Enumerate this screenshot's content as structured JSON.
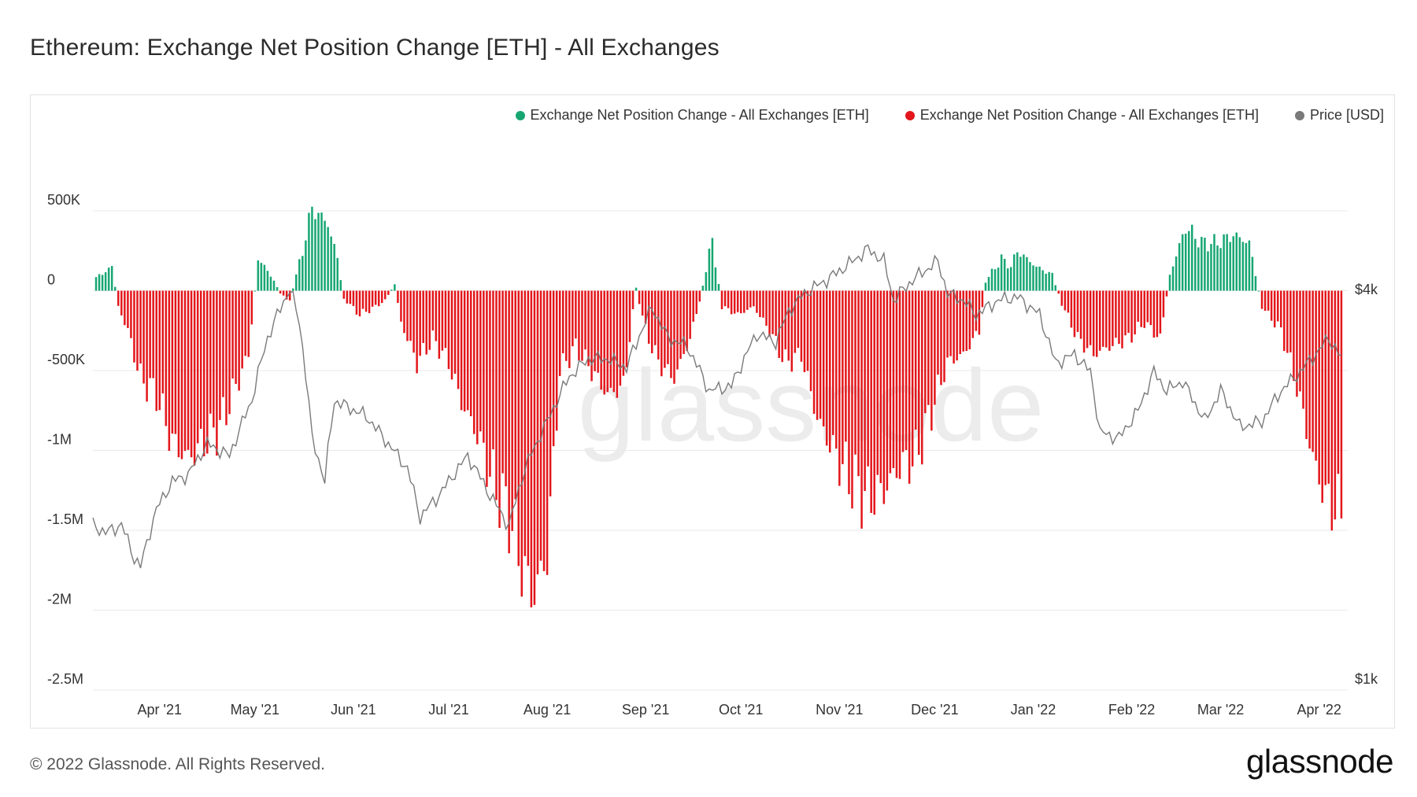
{
  "page": {
    "title": "Ethereum: Exchange Net Position Change [ETH] - All Exchanges",
    "copyright": "© 2022 Glassnode. All Rights Reserved.",
    "brand": "glassnode",
    "watermark": "glassnode"
  },
  "colors": {
    "positive": "#17a673",
    "negative": "#e3161b",
    "price": "#7a7a7a",
    "grid": "#e9e9e9"
  },
  "chart_data": {
    "type": "bar",
    "title": "Ethereum: Exchange Net Position Change [ETH] - All Exchanges",
    "legend": [
      {
        "label": "Exchange Net Position Change - All Exchanges [ETH]",
        "color": "#17a673"
      },
      {
        "label": "Exchange Net Position Change - All Exchanges [ETH]",
        "color": "#e3161b"
      },
      {
        "label": "Price [USD]",
        "color": "#7a7a7a"
      }
    ],
    "legend_position": "top-right",
    "y_left": {
      "ticks": [
        500000,
        0,
        -500000,
        -1000000,
        -1500000,
        -2000000,
        -2500000
      ],
      "tick_labels": [
        "500K",
        "0",
        "-500K",
        "-1M",
        "-1.5M",
        "-2M",
        "-2.5M"
      ],
      "range": [
        -2500000,
        500000
      ]
    },
    "y_right": {
      "scale": "log",
      "ticks": [
        4000,
        1000
      ],
      "tick_labels": [
        "$4k",
        "$1k"
      ],
      "range": [
        1000,
        5500
      ]
    },
    "x_axis": {
      "range": [
        "2021-03-11",
        "2022-04-10"
      ],
      "ticks": [
        {
          "date": "2021-04-01",
          "label": "Apr '21"
        },
        {
          "date": "2021-05-01",
          "label": "May '21"
        },
        {
          "date": "2021-06-01",
          "label": "Jun '21"
        },
        {
          "date": "2021-07-01",
          "label": "Jul '21"
        },
        {
          "date": "2021-08-01",
          "label": "Aug '21"
        },
        {
          "date": "2021-09-01",
          "label": "Sep '21"
        },
        {
          "date": "2021-10-01",
          "label": "Oct '21"
        },
        {
          "date": "2021-11-01",
          "label": "Nov '21"
        },
        {
          "date": "2021-12-01",
          "label": "Dec '21"
        },
        {
          "date": "2022-01-01",
          "label": "Jan '22"
        },
        {
          "date": "2022-02-01",
          "label": "Feb '22"
        },
        {
          "date": "2022-03-01",
          "label": "Mar '22"
        },
        {
          "date": "2022-04-01",
          "label": "Apr '22"
        }
      ]
    },
    "net_position_keypoints": [
      {
        "date": "2021-03-12",
        "value": 80000
      },
      {
        "date": "2021-03-17",
        "value": 150000
      },
      {
        "date": "2021-03-19",
        "value": -100000
      },
      {
        "date": "2021-03-22",
        "value": -250000
      },
      {
        "date": "2021-03-26",
        "value": -550000
      },
      {
        "date": "2021-03-31",
        "value": -650000
      },
      {
        "date": "2021-04-05",
        "value": -950000
      },
      {
        "date": "2021-04-10",
        "value": -1050000
      },
      {
        "date": "2021-04-15",
        "value": -950000
      },
      {
        "date": "2021-04-20",
        "value": -850000
      },
      {
        "date": "2021-04-25",
        "value": -600000
      },
      {
        "date": "2021-04-29",
        "value": -400000
      },
      {
        "date": "2021-05-02",
        "value": 200000
      },
      {
        "date": "2021-05-06",
        "value": 100000
      },
      {
        "date": "2021-05-09",
        "value": -20000
      },
      {
        "date": "2021-05-12",
        "value": -60000
      },
      {
        "date": "2021-05-16",
        "value": 250000
      },
      {
        "date": "2021-05-19",
        "value": 520000
      },
      {
        "date": "2021-05-24",
        "value": 420000
      },
      {
        "date": "2021-05-27",
        "value": 200000
      },
      {
        "date": "2021-05-29",
        "value": -50000
      },
      {
        "date": "2021-06-03",
        "value": -150000
      },
      {
        "date": "2021-06-08",
        "value": -100000
      },
      {
        "date": "2021-06-11",
        "value": -60000
      },
      {
        "date": "2021-06-14",
        "value": 40000
      },
      {
        "date": "2021-06-16",
        "value": -200000
      },
      {
        "date": "2021-06-21",
        "value": -450000
      },
      {
        "date": "2021-06-26",
        "value": -300000
      },
      {
        "date": "2021-07-01",
        "value": -450000
      },
      {
        "date": "2021-07-05",
        "value": -700000
      },
      {
        "date": "2021-07-10",
        "value": -900000
      },
      {
        "date": "2021-07-15",
        "value": -1200000
      },
      {
        "date": "2021-07-20",
        "value": -1400000
      },
      {
        "date": "2021-07-25",
        "value": -1800000
      },
      {
        "date": "2021-07-28",
        "value": -1900000
      },
      {
        "date": "2021-08-01",
        "value": -1650000
      },
      {
        "date": "2021-08-05",
        "value": -500000
      },
      {
        "date": "2021-08-10",
        "value": -350000
      },
      {
        "date": "2021-08-15",
        "value": -500000
      },
      {
        "date": "2021-08-20",
        "value": -650000
      },
      {
        "date": "2021-08-25",
        "value": -600000
      },
      {
        "date": "2021-08-29",
        "value": 20000
      },
      {
        "date": "2021-09-01",
        "value": -250000
      },
      {
        "date": "2021-09-05",
        "value": -450000
      },
      {
        "date": "2021-09-10",
        "value": -550000
      },
      {
        "date": "2021-09-15",
        "value": -300000
      },
      {
        "date": "2021-09-18",
        "value": -60000
      },
      {
        "date": "2021-09-22",
        "value": 320000
      },
      {
        "date": "2021-09-25",
        "value": -100000
      },
      {
        "date": "2021-09-30",
        "value": -150000
      },
      {
        "date": "2021-10-05",
        "value": -100000
      },
      {
        "date": "2021-10-10",
        "value": -250000
      },
      {
        "date": "2021-10-15",
        "value": -450000
      },
      {
        "date": "2021-10-20",
        "value": -400000
      },
      {
        "date": "2021-10-25",
        "value": -800000
      },
      {
        "date": "2021-10-30",
        "value": -1000000
      },
      {
        "date": "2021-11-05",
        "value": -1200000
      },
      {
        "date": "2021-11-10",
        "value": -1300000
      },
      {
        "date": "2021-11-15",
        "value": -1250000
      },
      {
        "date": "2021-11-20",
        "value": -1100000
      },
      {
        "date": "2021-11-25",
        "value": -1050000
      },
      {
        "date": "2021-11-30",
        "value": -750000
      },
      {
        "date": "2021-12-05",
        "value": -450000
      },
      {
        "date": "2021-12-10",
        "value": -400000
      },
      {
        "date": "2021-12-15",
        "value": -250000
      },
      {
        "date": "2021-12-17",
        "value": 60000
      },
      {
        "date": "2021-12-22",
        "value": 200000
      },
      {
        "date": "2021-12-25",
        "value": 150000
      },
      {
        "date": "2021-12-27",
        "value": 250000
      },
      {
        "date": "2022-01-02",
        "value": 150000
      },
      {
        "date": "2022-01-07",
        "value": 100000
      },
      {
        "date": "2022-01-10",
        "value": -80000
      },
      {
        "date": "2022-01-15",
        "value": -300000
      },
      {
        "date": "2022-01-20",
        "value": -400000
      },
      {
        "date": "2022-01-25",
        "value": -350000
      },
      {
        "date": "2022-01-31",
        "value": -300000
      },
      {
        "date": "2022-02-05",
        "value": -200000
      },
      {
        "date": "2022-02-10",
        "value": -300000
      },
      {
        "date": "2022-02-13",
        "value": 100000
      },
      {
        "date": "2022-02-18",
        "value": 400000
      },
      {
        "date": "2022-02-23",
        "value": 300000
      },
      {
        "date": "2022-02-28",
        "value": 300000
      },
      {
        "date": "2022-03-05",
        "value": 350000
      },
      {
        "date": "2022-03-10",
        "value": 300000
      },
      {
        "date": "2022-03-14",
        "value": -100000
      },
      {
        "date": "2022-03-20",
        "value": -250000
      },
      {
        "date": "2022-03-25",
        "value": -600000
      },
      {
        "date": "2022-03-30",
        "value": -1050000
      },
      {
        "date": "2022-04-03",
        "value": -1300000
      },
      {
        "date": "2022-04-08",
        "value": -1400000
      }
    ],
    "price_keypoints": [
      {
        "date": "2021-03-11",
        "value": 1800
      },
      {
        "date": "2021-03-15",
        "value": 1750
      },
      {
        "date": "2021-03-20",
        "value": 1800
      },
      {
        "date": "2021-03-24",
        "value": 1600
      },
      {
        "date": "2021-03-26",
        "value": 1550
      },
      {
        "date": "2021-03-31",
        "value": 1900
      },
      {
        "date": "2021-04-05",
        "value": 2100
      },
      {
        "date": "2021-04-10",
        "value": 2150
      },
      {
        "date": "2021-04-16",
        "value": 2400
      },
      {
        "date": "2021-04-23",
        "value": 2300
      },
      {
        "date": "2021-04-30",
        "value": 2800
      },
      {
        "date": "2021-05-05",
        "value": 3500
      },
      {
        "date": "2021-05-12",
        "value": 4170
      },
      {
        "date": "2021-05-15",
        "value": 3700
      },
      {
        "date": "2021-05-19",
        "value": 2450
      },
      {
        "date": "2021-05-23",
        "value": 2100
      },
      {
        "date": "2021-05-26",
        "value": 2800
      },
      {
        "date": "2021-06-05",
        "value": 2650
      },
      {
        "date": "2021-06-12",
        "value": 2400
      },
      {
        "date": "2021-06-18",
        "value": 2200
      },
      {
        "date": "2021-06-22",
        "value": 1850
      },
      {
        "date": "2021-06-28",
        "value": 2000
      },
      {
        "date": "2021-07-07",
        "value": 2300
      },
      {
        "date": "2021-07-14",
        "value": 2000
      },
      {
        "date": "2021-07-20",
        "value": 1790
      },
      {
        "date": "2021-07-25",
        "value": 2200
      },
      {
        "date": "2021-08-01",
        "value": 2600
      },
      {
        "date": "2021-08-08",
        "value": 3050
      },
      {
        "date": "2021-08-14",
        "value": 3250
      },
      {
        "date": "2021-08-20",
        "value": 3250
      },
      {
        "date": "2021-08-26",
        "value": 3150
      },
      {
        "date": "2021-09-03",
        "value": 3900
      },
      {
        "date": "2021-09-08",
        "value": 3500
      },
      {
        "date": "2021-09-14",
        "value": 3400
      },
      {
        "date": "2021-09-21",
        "value": 2900
      },
      {
        "date": "2021-09-28",
        "value": 2950
      },
      {
        "date": "2021-10-06",
        "value": 3550
      },
      {
        "date": "2021-10-12",
        "value": 3450
      },
      {
        "date": "2021-10-16",
        "value": 3850
      },
      {
        "date": "2021-10-21",
        "value": 4100
      },
      {
        "date": "2021-10-28",
        "value": 4300
      },
      {
        "date": "2021-11-04",
        "value": 4550
      },
      {
        "date": "2021-11-10",
        "value": 4800
      },
      {
        "date": "2021-11-15",
        "value": 4600
      },
      {
        "date": "2021-11-18",
        "value": 4000
      },
      {
        "date": "2021-11-24",
        "value": 4300
      },
      {
        "date": "2021-12-02",
        "value": 4600
      },
      {
        "date": "2021-12-05",
        "value": 4100
      },
      {
        "date": "2021-12-10",
        "value": 4000
      },
      {
        "date": "2021-12-14",
        "value": 3800
      },
      {
        "date": "2021-12-21",
        "value": 4000
      },
      {
        "date": "2021-12-27",
        "value": 4050
      },
      {
        "date": "2022-01-03",
        "value": 3800
      },
      {
        "date": "2022-01-08",
        "value": 3200
      },
      {
        "date": "2022-01-14",
        "value": 3300
      },
      {
        "date": "2022-01-19",
        "value": 3100
      },
      {
        "date": "2022-01-22",
        "value": 2500
      },
      {
        "date": "2022-01-28",
        "value": 2450
      },
      {
        "date": "2022-02-03",
        "value": 2700
      },
      {
        "date": "2022-02-08",
        "value": 3100
      },
      {
        "date": "2022-02-12",
        "value": 2900
      },
      {
        "date": "2022-02-17",
        "value": 3000
      },
      {
        "date": "2022-02-24",
        "value": 2600
      },
      {
        "date": "2022-03-01",
        "value": 2900
      },
      {
        "date": "2022-03-07",
        "value": 2550
      },
      {
        "date": "2022-03-14",
        "value": 2600
      },
      {
        "date": "2022-03-20",
        "value": 2900
      },
      {
        "date": "2022-03-26",
        "value": 3100
      },
      {
        "date": "2022-04-01",
        "value": 3350
      },
      {
        "date": "2022-04-04",
        "value": 3500
      },
      {
        "date": "2022-04-08",
        "value": 3250
      }
    ]
  }
}
